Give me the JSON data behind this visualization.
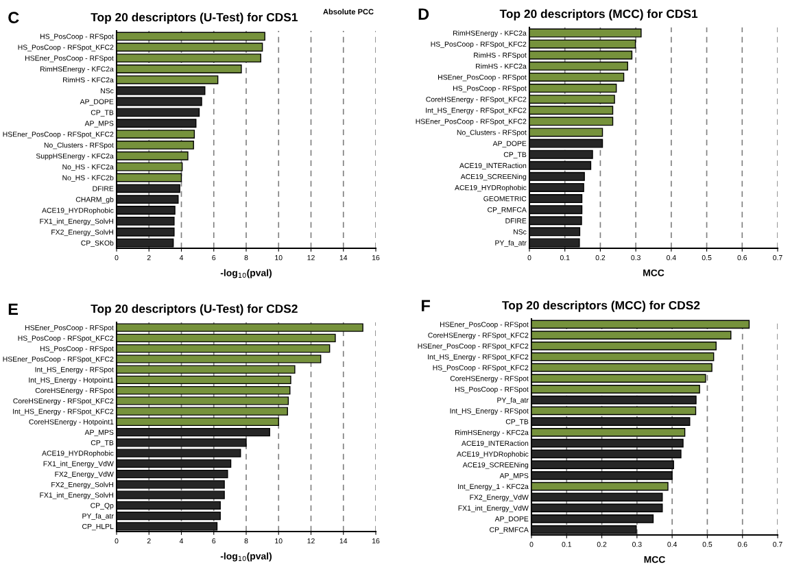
{
  "chart_data": [
    {
      "type": "bar",
      "orientation": "horizontal",
      "title": "Top 20 descriptors (U-Test) for CDS1",
      "xlabel": "-log$_{10}$(pval)",
      "annotations": [
        "C",
        "Absolute PCC"
      ],
      "categories": [
        "HS_PosCoop - RFSpot",
        "HS_PosCoop - RFSpot_KFC2",
        "HSEner_PosCoop - RFSpot",
        "RimHSEnergy - KFC2a",
        "RimHS - KFC2a",
        "NSc",
        "AP_DOPE",
        "CP_TB",
        "AP_MPS",
        "HSEner_PosCoop - RFSpot_KFC2",
        "No_Clusters - RFSpot",
        "SuppHSEnergy - KFC2a",
        "No_HS - KFC2a",
        "No_HS - KFC2b",
        "DFIRE",
        "CHARM_gb",
        "ACE19_HYDRophobic",
        "FX1_int_Energy_SolvH",
        "FX2_Energy_SolvH",
        "CP_SKOb"
      ],
      "values": [
        9.15,
        9.0,
        8.9,
        7.7,
        6.25,
        5.45,
        5.25,
        5.1,
        4.9,
        4.8,
        4.75,
        4.4,
        4.05,
        4.0,
        3.9,
        3.8,
        3.6,
        3.55,
        3.55,
        3.5
      ],
      "colors": [
        "#76923c",
        "#76923c",
        "#76923c",
        "#76923c",
        "#76923c",
        "#262626",
        "#262626",
        "#262626",
        "#262626",
        "#76923c",
        "#76923c",
        "#76923c",
        "#76923c",
        "#76923c",
        "#262626",
        "#262626",
        "#262626",
        "#262626",
        "#262626",
        "#262626"
      ],
      "xlim": [
        0,
        16
      ],
      "xticks": [
        0,
        2,
        4,
        6,
        8,
        10,
        12,
        14,
        16
      ],
      "grid": "x"
    },
    {
      "type": "bar",
      "orientation": "horizontal",
      "title": "Top 20 descriptors (MCC) for CDS1",
      "xlabel": "MCC",
      "annotations": [
        "D"
      ],
      "categories": [
        "RimHSEnergy - KFC2a",
        "HS_PosCoop - RFSpot_KFC2",
        "RimHS - RFSpot",
        "RimHS - KFC2a",
        "HSEner_PosCoop - RFSpot",
        "HS_PosCoop - RFSpot",
        "CoreHSEnergy - RFSpot_KFC2",
        "Int_HS_Energy - RFSpot_KFC2",
        "HSEner_PosCoop - RFSpot_KFC2",
        "No_Clusters - RFSpot",
        "AP_DOPE",
        "CP_TB",
        "ACE19_INTERaction",
        "ACE19_SCREENing",
        "ACE19_HYDRophobic",
        "GEOMETRIC",
        "CP_RMFCA",
        "DFIRE",
        "NSc",
        "PY_fa_atr"
      ],
      "values": [
        0.315,
        0.299,
        0.289,
        0.277,
        0.266,
        0.245,
        0.24,
        0.235,
        0.235,
        0.206,
        0.206,
        0.178,
        0.173,
        0.155,
        0.153,
        0.148,
        0.148,
        0.147,
        0.142,
        0.141
      ],
      "colors": [
        "#76923c",
        "#76923c",
        "#76923c",
        "#76923c",
        "#76923c",
        "#76923c",
        "#76923c",
        "#76923c",
        "#76923c",
        "#76923c",
        "#262626",
        "#262626",
        "#262626",
        "#262626",
        "#262626",
        "#262626",
        "#262626",
        "#262626",
        "#262626",
        "#262626"
      ],
      "xlim": [
        0,
        0.7
      ],
      "xticks": [
        0,
        0.1,
        0.2,
        0.3,
        0.4,
        0.5,
        0.6,
        0.7
      ],
      "grid": "x"
    },
    {
      "type": "bar",
      "orientation": "horizontal",
      "title": "Top 20 descriptors (U-Test) for CDS2",
      "xlabel": "-log$_{10}$(pval)",
      "annotations": [
        "E"
      ],
      "categories": [
        "HSEner_PosCoop - RFSpot",
        "HS_PosCoop - RFSpot_KFC2",
        "HS_PosCoop - RFSpot",
        "HSEner_PosCoop - RFSpot_KFC2",
        "Int_HS_Energy - RFSpot",
        "Int_HS_Energy - Hotpoint1",
        "CoreHSEnergy - RFSpot",
        "CoreHSEnergy - RFSpot_KFC2",
        "Int_HS_Energy - RFSpot_KFC2",
        "CoreHSEnergy - Hotpoint1",
        "AP_MPS",
        "CP_TB",
        "ACE19_HYDRophobic",
        "FX1_int_Energy_VdW",
        "FX2_Energy_VdW",
        "FX2_Energy_SolvH",
        "FX1_int_Energy_SolvH",
        "CP_Qp",
        "PY_fa_atr",
        "CP_HLPL"
      ],
      "values": [
        15.2,
        13.5,
        13.15,
        12.6,
        11.0,
        10.75,
        10.7,
        10.6,
        10.55,
        10.0,
        9.45,
        8.0,
        7.65,
        7.05,
        6.85,
        6.65,
        6.65,
        6.4,
        6.4,
        6.2
      ],
      "colors": [
        "#76923c",
        "#76923c",
        "#76923c",
        "#76923c",
        "#76923c",
        "#76923c",
        "#76923c",
        "#76923c",
        "#76923c",
        "#76923c",
        "#262626",
        "#262626",
        "#262626",
        "#262626",
        "#262626",
        "#262626",
        "#262626",
        "#262626",
        "#262626",
        "#262626"
      ],
      "xlim": [
        0,
        16
      ],
      "xticks": [
        0,
        2,
        4,
        6,
        8,
        10,
        12,
        14,
        16
      ],
      "grid": "x"
    },
    {
      "type": "bar",
      "orientation": "horizontal",
      "title": "Top 20 descriptors (MCC) for CDS2",
      "xlabel": "MCC",
      "annotations": [
        "F"
      ],
      "categories": [
        "HSEner_PosCoop - RFSpot",
        "CoreHSEnergy - RFSpot_KFC2",
        "HSEner_PosCoop - RFSpot_KFC2",
        "Int_HS_Energy - RFSpot_KFC2",
        "HS_PosCoop - RFSpot_KFC2",
        "CoreHSEnergy - RFSpot",
        "HS_PosCoop - RFSpot",
        "PY_fa_atr",
        "Int_HS_Energy - RFSpot",
        "CP_TB",
        "RimHSEnergy - KFC2a",
        "ACE19_INTERaction",
        "ACE19_HYDRophobic",
        "ACE19_SCREENing",
        "AP_MPS",
        "Int_Energy_1 - KFC2a",
        "FX2_Energy_VdW",
        "FX1_int_Energy_VdW",
        "AP_DOPE",
        "CP_RMFCA"
      ],
      "values": [
        0.619,
        0.567,
        0.525,
        0.518,
        0.513,
        0.495,
        0.478,
        0.468,
        0.467,
        0.45,
        0.436,
        0.431,
        0.425,
        0.404,
        0.4,
        0.388,
        0.372,
        0.372,
        0.346,
        0.298
      ],
      "colors": [
        "#76923c",
        "#76923c",
        "#76923c",
        "#76923c",
        "#76923c",
        "#76923c",
        "#76923c",
        "#262626",
        "#76923c",
        "#262626",
        "#76923c",
        "#262626",
        "#262626",
        "#262626",
        "#262626",
        "#76923c",
        "#262626",
        "#262626",
        "#262626",
        "#262626"
      ],
      "xlim": [
        0,
        0.7
      ],
      "xticks": [
        0,
        0.1,
        0.2,
        0.3,
        0.4,
        0.5,
        0.6,
        0.7
      ],
      "grid": "x"
    }
  ]
}
